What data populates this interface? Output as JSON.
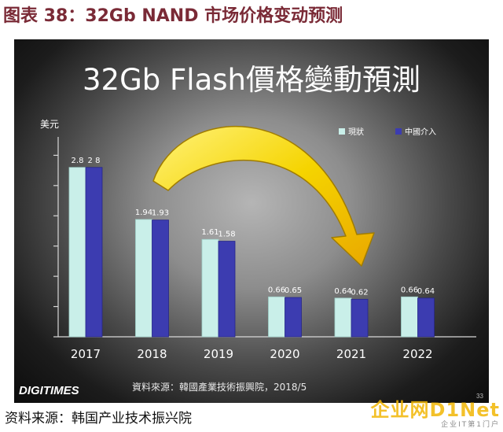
{
  "figure_title": "图表 38：32Gb NAND 市场价格变动预测",
  "slide": {
    "heading": "32Gb Flash價格變動預測",
    "source": "資料來源：韓國產業技術振興院，2018/5",
    "logo": "DIGITIMES",
    "page_number": "33"
  },
  "footer_source": "资料来源：韩国产业技术振兴院",
  "watermark": {
    "main": "企业网D1Net",
    "sub": "企业IT第1门户"
  },
  "colors": {
    "series_current": "#c9efe9",
    "series_intervention": "#3c3cb0",
    "title_color": "#7a2a36",
    "arrow": "#f5d400"
  },
  "chart_data": {
    "type": "bar",
    "title": "32Gb Flash價格變動預測",
    "ylabel": "美元",
    "xlabel": "",
    "categories": [
      "2017",
      "2018",
      "2019",
      "2020",
      "2021",
      "2022"
    ],
    "series": [
      {
        "name": "現狀",
        "values": [
          2.8,
          1.94,
          1.61,
          0.66,
          0.64,
          0.66
        ],
        "labels": [
          "2.8",
          "1.94",
          "1.61",
          "0.66",
          "0.64",
          "0.66"
        ]
      },
      {
        "name": "中國介入",
        "values": [
          2.8,
          1.93,
          1.58,
          0.65,
          0.62,
          0.64
        ],
        "labels": [
          "2 8",
          "1.93",
          "1.58",
          "0.65",
          "0.62",
          "0.64"
        ]
      }
    ],
    "ylim": [
      0,
      3.2
    ],
    "grid": false,
    "legend_position": "top-right"
  }
}
